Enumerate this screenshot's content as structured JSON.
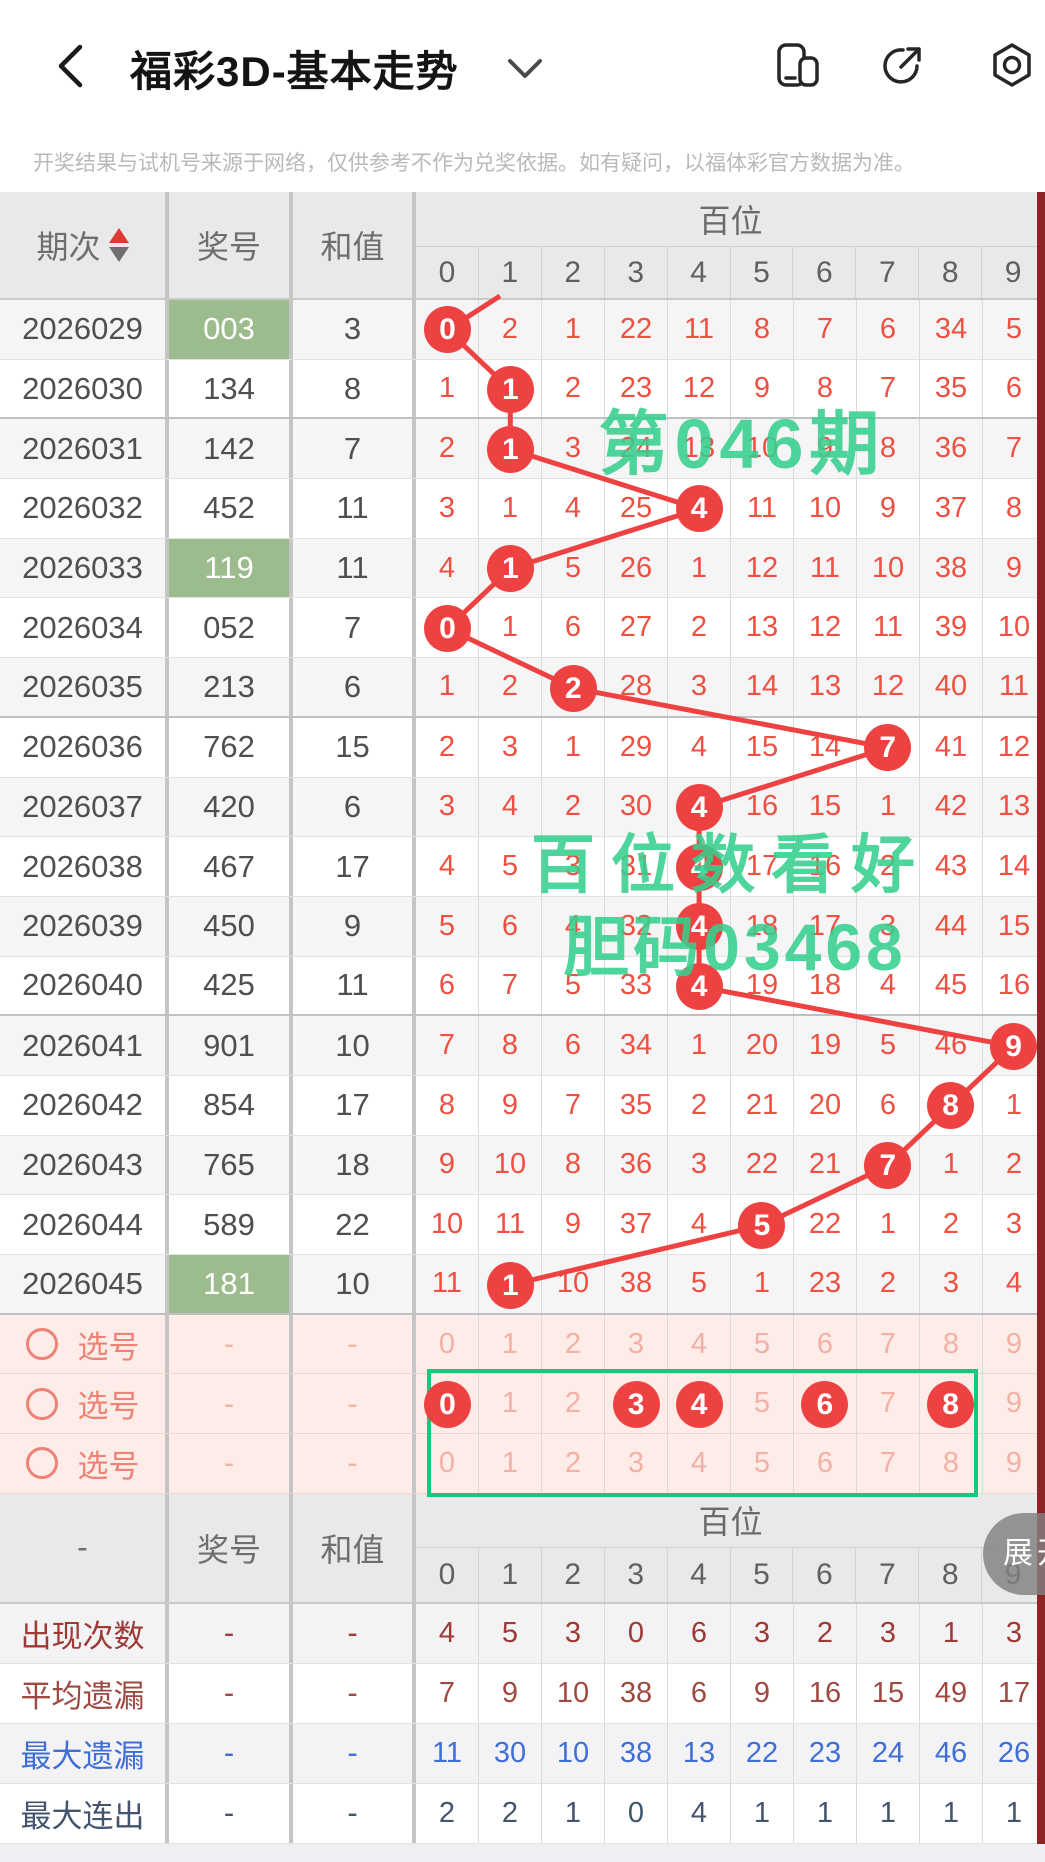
{
  "topbar": {
    "title": "福彩3D-基本走势",
    "icons": [
      "back-icon",
      "dropdown-caret-icon",
      "floating-window-icon",
      "share-icon",
      "settings-icon"
    ]
  },
  "disclaimer": "开奖结果与试机号来源于网络，仅供参考不作为兑奖依据。如有疑问，以福体彩官方数据为准。",
  "table": {
    "col_headers": {
      "period": "期次",
      "number": "奖号",
      "sum": "和值",
      "group": "百位",
      "digits": [
        "0",
        "1",
        "2",
        "3",
        "4",
        "5",
        "6",
        "7",
        "8",
        "9"
      ]
    },
    "group_after": [
      1,
      6,
      11,
      16
    ],
    "rows": [
      {
        "period": "2026029",
        "number": "003",
        "sum": "3",
        "highlight": true,
        "ball": 0,
        "miss": [
          null,
          2,
          1,
          22,
          11,
          8,
          7,
          6,
          34,
          5
        ]
      },
      {
        "period": "2026030",
        "number": "134",
        "sum": "8",
        "highlight": false,
        "ball": 1,
        "miss": [
          1,
          null,
          2,
          23,
          12,
          9,
          8,
          7,
          35,
          6
        ]
      },
      {
        "period": "2026031",
        "number": "142",
        "sum": "7",
        "highlight": false,
        "ball": 1,
        "miss": [
          2,
          null,
          3,
          24,
          13,
          10,
          9,
          8,
          36,
          7
        ]
      },
      {
        "period": "2026032",
        "number": "452",
        "sum": "11",
        "highlight": false,
        "ball": 4,
        "miss": [
          3,
          1,
          4,
          25,
          null,
          11,
          10,
          9,
          37,
          8
        ]
      },
      {
        "period": "2026033",
        "number": "119",
        "sum": "11",
        "highlight": true,
        "ball": 1,
        "miss": [
          4,
          null,
          5,
          26,
          1,
          12,
          11,
          10,
          38,
          9
        ]
      },
      {
        "period": "2026034",
        "number": "052",
        "sum": "7",
        "highlight": false,
        "ball": 0,
        "miss": [
          null,
          1,
          6,
          27,
          2,
          13,
          12,
          11,
          39,
          10
        ]
      },
      {
        "period": "2026035",
        "number": "213",
        "sum": "6",
        "highlight": false,
        "ball": 2,
        "miss": [
          1,
          2,
          null,
          28,
          3,
          14,
          13,
          12,
          40,
          11
        ]
      },
      {
        "period": "2026036",
        "number": "762",
        "sum": "15",
        "highlight": false,
        "ball": 7,
        "miss": [
          2,
          3,
          1,
          29,
          4,
          15,
          14,
          null,
          41,
          12
        ]
      },
      {
        "period": "2026037",
        "number": "420",
        "sum": "6",
        "highlight": false,
        "ball": 4,
        "miss": [
          3,
          4,
          2,
          30,
          null,
          16,
          15,
          1,
          42,
          13
        ]
      },
      {
        "period": "2026038",
        "number": "467",
        "sum": "17",
        "highlight": false,
        "ball": 4,
        "miss": [
          4,
          5,
          3,
          31,
          null,
          17,
          16,
          2,
          43,
          14
        ]
      },
      {
        "period": "2026039",
        "number": "450",
        "sum": "9",
        "highlight": false,
        "ball": 4,
        "miss": [
          5,
          6,
          4,
          32,
          null,
          18,
          17,
          3,
          44,
          15
        ]
      },
      {
        "period": "2026040",
        "number": "425",
        "sum": "11",
        "highlight": false,
        "ball": 4,
        "miss": [
          6,
          7,
          5,
          33,
          null,
          19,
          18,
          4,
          45,
          16
        ]
      },
      {
        "period": "2026041",
        "number": "901",
        "sum": "10",
        "highlight": false,
        "ball": 9,
        "miss": [
          7,
          8,
          6,
          34,
          1,
          20,
          19,
          5,
          46,
          null
        ]
      },
      {
        "period": "2026042",
        "number": "854",
        "sum": "17",
        "highlight": false,
        "ball": 8,
        "miss": [
          8,
          9,
          7,
          35,
          2,
          21,
          20,
          6,
          null,
          1
        ]
      },
      {
        "period": "2026043",
        "number": "765",
        "sum": "18",
        "highlight": false,
        "ball": 7,
        "miss": [
          9,
          10,
          8,
          36,
          3,
          22,
          21,
          null,
          1,
          2
        ]
      },
      {
        "period": "2026044",
        "number": "589",
        "sum": "22",
        "highlight": false,
        "ball": 5,
        "miss": [
          10,
          11,
          9,
          37,
          4,
          null,
          22,
          1,
          2,
          3
        ]
      },
      {
        "period": "2026045",
        "number": "181",
        "sum": "10",
        "highlight": true,
        "ball": 1,
        "miss": [
          11,
          null,
          10,
          38,
          5,
          1,
          23,
          2,
          3,
          4
        ]
      }
    ],
    "pick_label": "选号",
    "pick_dash": "-",
    "pick_rows": [
      {
        "values": [
          "0",
          "1",
          "2",
          "3",
          "4",
          "5",
          "6",
          "7",
          "8",
          "9"
        ],
        "balls": []
      },
      {
        "values": [
          "0",
          "1",
          "2",
          "3",
          "4",
          "5",
          "6",
          "7",
          "8",
          "9"
        ],
        "balls": [
          0,
          3,
          4,
          6,
          8
        ]
      },
      {
        "values": [
          "0",
          "1",
          "2",
          "3",
          "4",
          "5",
          "6",
          "7",
          "8",
          "9"
        ],
        "balls": []
      }
    ],
    "stats_corner": "-",
    "stats": [
      {
        "label": "出现次数",
        "dash": "-",
        "color": "#9e3a33",
        "values": [
          "4",
          "5",
          "3",
          "0",
          "6",
          "3",
          "2",
          "3",
          "1",
          "3"
        ]
      },
      {
        "label": "平均遗漏",
        "dash": "-",
        "color": "#9e4a42",
        "values": [
          "7",
          "9",
          "10",
          "38",
          "6",
          "9",
          "16",
          "15",
          "49",
          "17"
        ]
      },
      {
        "label": "最大遗漏",
        "dash": "-",
        "color": "#3f6fd6",
        "values": [
          "11",
          "30",
          "10",
          "38",
          "13",
          "22",
          "23",
          "24",
          "46",
          "26"
        ]
      },
      {
        "label": "最大连出",
        "dash": "-",
        "color": "#44546e",
        "values": [
          "2",
          "2",
          "1",
          "0",
          "4",
          "1",
          "1",
          "1",
          "1",
          "1"
        ]
      }
    ]
  },
  "watermarks": {
    "line1": "第046期",
    "line2": "百位数看好",
    "line3": "胆码03468"
  },
  "expand_button": "展开",
  "colors": {
    "ball_red": "#ee4242",
    "miss_red": "#ee5042",
    "green_highlight": "#9dbc8e",
    "watermark_green": "#35d08e",
    "select_box_green": "#12c97d",
    "pick_bg": "#fdece7",
    "pick_text": "#f3b0a5",
    "pick_label_color": "#ef8276",
    "right_strip": "#8e2525"
  }
}
